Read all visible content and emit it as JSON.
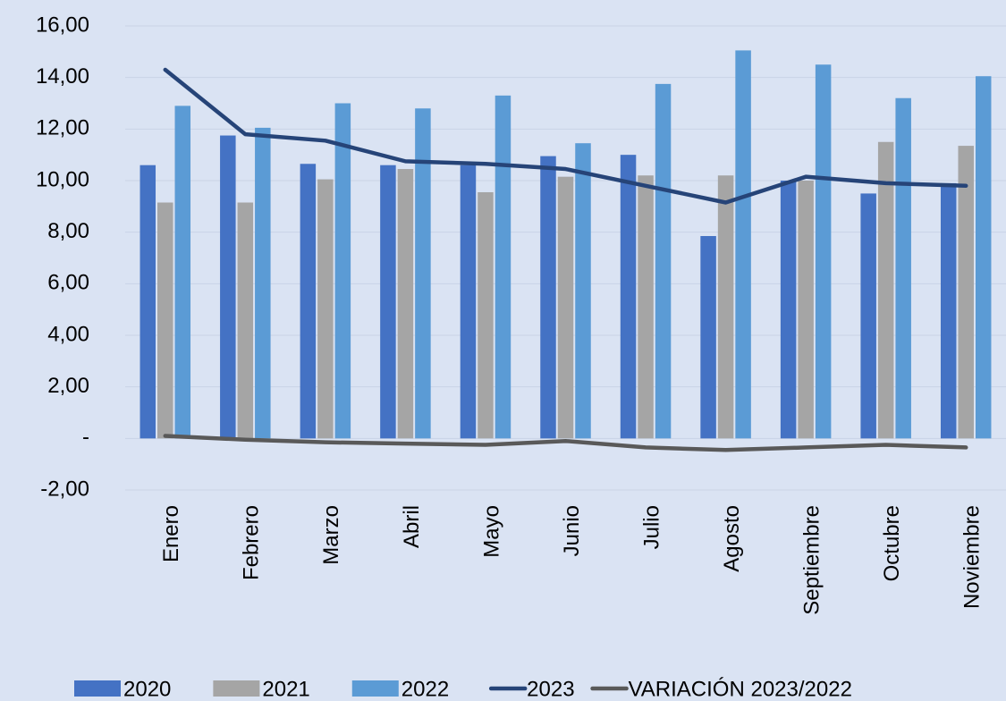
{
  "chart_data": {
    "type": "combo",
    "categories": [
      "Enero",
      "Febrero",
      "Marzo",
      "Abril",
      "Mayo",
      "Junio",
      "Julio",
      "Agosto",
      "Septiembre",
      "Octubre",
      "Noviembre"
    ],
    "series": [
      {
        "name": "2020",
        "type": "bar",
        "color": "#4472c4",
        "values": [
          10.6,
          11.75,
          10.65,
          10.6,
          10.6,
          10.95,
          11.0,
          7.85,
          10.0,
          9.5,
          9.9
        ]
      },
      {
        "name": "2021",
        "type": "bar",
        "color": "#a5a5a5",
        "values": [
          9.15,
          9.15,
          10.05,
          10.45,
          9.55,
          10.15,
          10.2,
          10.2,
          10.0,
          11.5,
          11.35
        ]
      },
      {
        "name": "2022",
        "type": "bar",
        "color": "#5b9bd5",
        "values": [
          12.9,
          12.05,
          13.0,
          12.8,
          13.3,
          11.45,
          13.75,
          15.05,
          14.5,
          13.2,
          14.05
        ]
      },
      {
        "name": "2023",
        "type": "line",
        "color": "#264478",
        "values": [
          14.3,
          11.8,
          11.55,
          10.75,
          10.65,
          10.45,
          9.8,
          9.15,
          10.15,
          9.9,
          9.8
        ]
      },
      {
        "name": "VARIACIÓN 2023/2022",
        "type": "line",
        "color": "#595959",
        "values": [
          0.1,
          -0.05,
          -0.15,
          -0.2,
          -0.25,
          -0.1,
          -0.35,
          -0.45,
          -0.35,
          -0.25,
          -0.35
        ]
      }
    ],
    "ylim": [
      -2,
      16
    ],
    "yticks": [
      {
        "value": -2,
        "label": "-2,00"
      },
      {
        "value": 0,
        "label": "-"
      },
      {
        "value": 2,
        "label": "2,00"
      },
      {
        "value": 4,
        "label": "4,00"
      },
      {
        "value": 6,
        "label": "6,00"
      },
      {
        "value": 8,
        "label": "8,00"
      },
      {
        "value": 10,
        "label": "10,00"
      },
      {
        "value": 12,
        "label": "12,00"
      },
      {
        "value": 14,
        "label": "14,00"
      },
      {
        "value": 16,
        "label": "16,00"
      }
    ],
    "grid": true,
    "legend": "bottom"
  }
}
